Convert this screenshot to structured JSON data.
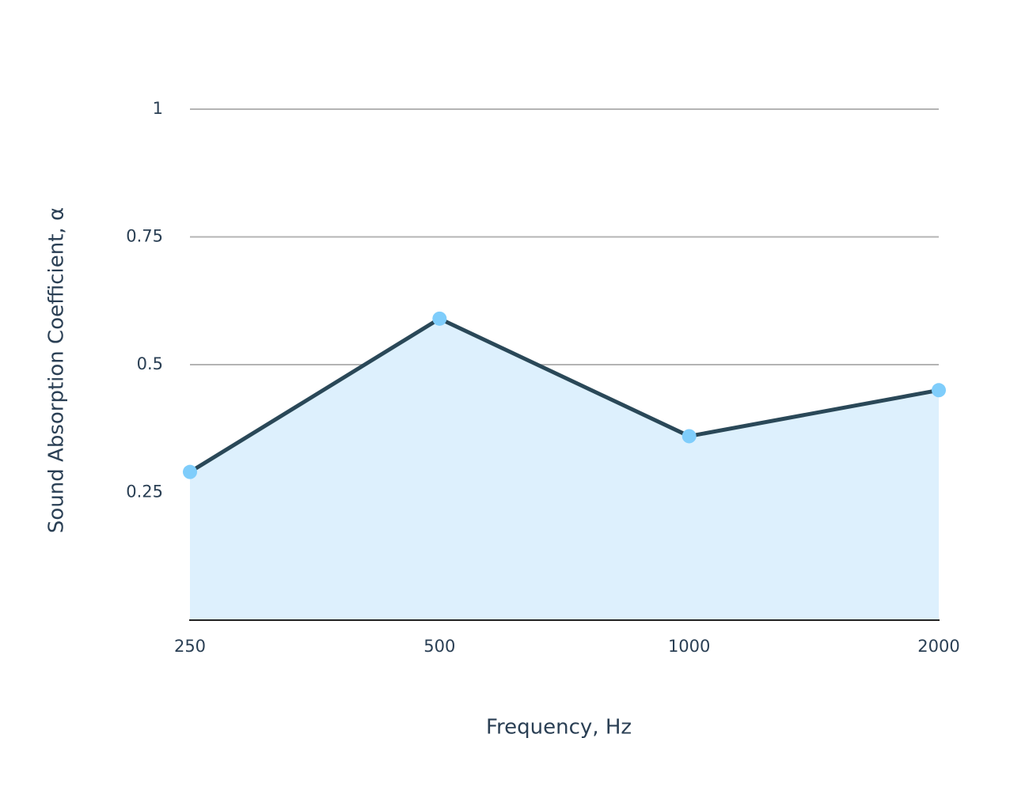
{
  "chart_data": {
    "type": "area",
    "x_label": "Frequency, Hz",
    "y_label": "Sound Absorption Coefficient, α",
    "categories": [
      "250",
      "500",
      "1000",
      "2000"
    ],
    "series": [
      {
        "name": "Sound Absorption Coefficient",
        "values": [
          0.29,
          0.59,
          0.36,
          0.45
        ],
        "color": "#2a4858",
        "marker_color": "#7fcdfb",
        "fill_color": "#ddf0fd"
      }
    ],
    "ylim": [
      0,
      1
    ],
    "yticks": [
      0.25,
      0.5,
      0.75,
      1
    ],
    "grid": true
  }
}
